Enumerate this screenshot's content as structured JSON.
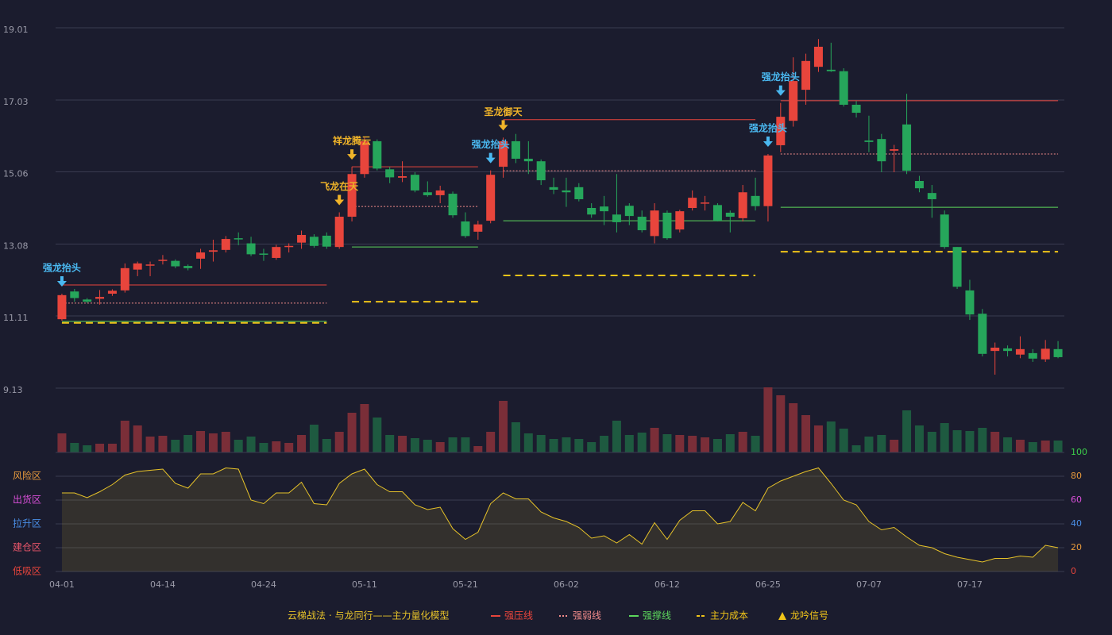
{
  "chart_data": {
    "type": "candlestick",
    "categories": [
      "04-01",
      null,
      null,
      null,
      null,
      null,
      null,
      null,
      "04-14",
      null,
      null,
      null,
      null,
      null,
      null,
      null,
      "04-24",
      null,
      null,
      null,
      null,
      null,
      null,
      null,
      "05-11",
      null,
      null,
      null,
      null,
      null,
      null,
      null,
      "05-21",
      null,
      null,
      null,
      null,
      null,
      null,
      null,
      "06-02",
      null,
      null,
      null,
      null,
      null,
      null,
      null,
      "06-12",
      null,
      null,
      null,
      null,
      null,
      null,
      null,
      "06-25",
      null,
      null,
      null,
      null,
      null,
      null,
      null,
      "07-07",
      null,
      null,
      null,
      null,
      null,
      null,
      null,
      "07-17",
      null,
      null,
      null,
      null,
      null,
      null,
      null
    ],
    "open": [
      11.02,
      11.78,
      11.56,
      11.58,
      11.72,
      11.81,
      12.38,
      12.49,
      12.62,
      12.62,
      12.48,
      12.68,
      12.87,
      12.92,
      13.24,
      13.1,
      12.82,
      12.7,
      13.0,
      13.12,
      13.28,
      13.31,
      13.0,
      13.83,
      15.0,
      15.9,
      15.13,
      14.9,
      14.98,
      14.5,
      14.42,
      14.46,
      13.7,
      13.42,
      13.72,
      15.2,
      15.9,
      15.42,
      15.35,
      14.64,
      14.55,
      14.64,
      14.07,
      14.11,
      13.89,
      14.13,
      13.83,
      13.3,
      13.94,
      13.48,
      14.07,
      14.19,
      14.15,
      13.94,
      13.79,
      14.4,
      14.12,
      15.79,
      16.46,
      17.31,
      17.94,
      17.86,
      17.82,
      16.9,
      15.92,
      15.96,
      15.64,
      16.36,
      14.81,
      14.48,
      13.89,
      13.0,
      11.81,
      11.17,
      10.15,
      10.22,
      10.05,
      10.09,
      9.92,
      10.2
    ],
    "high": [
      11.72,
      11.85,
      11.6,
      11.82,
      11.84,
      12.55,
      12.6,
      12.6,
      12.78,
      12.66,
      12.52,
      12.95,
      13.2,
      13.3,
      13.4,
      13.28,
      12.95,
      13.06,
      13.1,
      13.45,
      13.35,
      13.4,
      13.95,
      15.2,
      16.0,
      15.95,
      15.2,
      15.35,
      15.05,
      14.8,
      14.68,
      14.52,
      13.95,
      13.72,
      15.1,
      16.0,
      16.1,
      15.9,
      15.4,
      14.9,
      14.9,
      14.75,
      14.2,
      14.4,
      15.0,
      14.2,
      14.0,
      14.2,
      14.0,
      14.02,
      14.55,
      14.4,
      14.2,
      14.0,
      14.7,
      14.9,
      15.55,
      16.95,
      18.2,
      18.3,
      18.7,
      18.6,
      17.9,
      17.0,
      16.6,
      16.1,
      15.8,
      17.2,
      14.95,
      14.7,
      14.0,
      13.0,
      12.1,
      11.3,
      10.38,
      10.3,
      10.55,
      10.2,
      10.45,
      10.42
    ],
    "low": [
      10.98,
      11.5,
      11.46,
      11.42,
      11.66,
      11.75,
      12.2,
      12.2,
      12.52,
      12.42,
      12.36,
      12.4,
      12.6,
      12.85,
      13.05,
      12.75,
      12.62,
      12.65,
      12.85,
      12.95,
      12.98,
      12.95,
      12.95,
      13.7,
      14.9,
      15.1,
      14.75,
      14.78,
      14.5,
      14.38,
      14.2,
      13.8,
      13.25,
      13.2,
      13.65,
      14.9,
      15.3,
      15.0,
      14.7,
      14.45,
      14.1,
      14.25,
      13.8,
      13.6,
      13.4,
      13.6,
      13.4,
      13.1,
      13.2,
      13.4,
      14.0,
      14.0,
      13.7,
      13.4,
      13.7,
      14.0,
      13.7,
      15.6,
      16.3,
      16.9,
      17.8,
      17.8,
      16.85,
      16.55,
      15.6,
      15.05,
      15.05,
      15.0,
      14.5,
      13.8,
      12.95,
      11.85,
      11.0,
      10.0,
      9.5,
      10.0,
      9.95,
      9.85,
      9.85,
      9.95
    ],
    "close": [
      11.68,
      11.6,
      11.5,
      11.63,
      11.8,
      12.42,
      12.55,
      12.52,
      12.65,
      12.47,
      12.42,
      12.85,
      12.91,
      13.22,
      13.21,
      12.8,
      12.8,
      13.0,
      13.03,
      13.33,
      13.03,
      13.01,
      13.83,
      15.0,
      15.9,
      15.15,
      14.91,
      14.94,
      14.55,
      14.42,
      14.55,
      13.87,
      13.3,
      13.62,
      14.98,
      15.9,
      15.42,
      15.35,
      14.83,
      14.57,
      14.5,
      14.31,
      13.89,
      13.98,
      13.68,
      13.85,
      13.46,
      14.0,
      13.24,
      13.98,
      14.35,
      14.22,
      13.72,
      13.83,
      14.5,
      14.12,
      15.51,
      16.57,
      17.55,
      18.1,
      18.49,
      17.82,
      16.9,
      16.68,
      15.88,
      15.35,
      15.68,
      15.09,
      14.61,
      14.31,
      13.0,
      11.91,
      11.15,
      10.07,
      10.24,
      10.15,
      10.2,
      9.94,
      10.21,
      9.98
    ],
    "volume": [
      24,
      12,
      9,
      11,
      11,
      40,
      34,
      20,
      21,
      16,
      22,
      27,
      24,
      26,
      16,
      20,
      12,
      14,
      12,
      22,
      35,
      17,
      26,
      50,
      61,
      44,
      22,
      21,
      18,
      16,
      13,
      19,
      19,
      8,
      26,
      65,
      38,
      24,
      22,
      17,
      19,
      17,
      13,
      21,
      40,
      22,
      25,
      31,
      23,
      22,
      21,
      19,
      17,
      23,
      26,
      21,
      82,
      72,
      62,
      47,
      34,
      39,
      30,
      9,
      20,
      22,
      16,
      53,
      34,
      26,
      37,
      28,
      27,
      31,
      26,
      19,
      16,
      13,
      15,
      15
    ],
    "up_color": "#e8453c",
    "down_color": "#26a65b",
    "up_volume_color": "#7a2e38",
    "down_volume_color": "#1e5a40",
    "ylim": [
      9.13,
      19.01
    ],
    "yticks": [
      9.13,
      11.11,
      13.08,
      15.06,
      17.03,
      19.01
    ],
    "grid": true,
    "indicator": {
      "values": [
        66,
        66,
        62,
        67,
        73,
        81,
        84,
        85,
        86,
        74,
        70,
        82,
        82,
        87,
        86,
        60,
        57,
        66,
        66,
        75,
        57,
        56,
        74,
        82,
        86,
        73,
        67,
        67,
        56,
        52,
        54,
        36,
        27,
        33,
        57,
        66,
        61,
        61,
        50,
        45,
        42,
        37,
        28,
        30,
        24,
        31,
        23,
        41,
        27,
        43,
        51,
        51,
        40,
        42,
        58,
        51,
        70,
        76,
        80,
        84,
        87,
        74,
        60,
        56,
        42,
        35,
        37,
        29,
        22,
        20,
        15,
        12,
        10,
        8,
        11,
        11,
        13,
        12,
        22,
        20
      ],
      "color": "#e6c229",
      "ylim": [
        0,
        100
      ],
      "yticks": [
        {
          "value": 0,
          "color": "#e8453c"
        },
        {
          "value": 20,
          "color": "#e89a3c"
        },
        {
          "value": 40,
          "color": "#4a8fe8"
        },
        {
          "value": 60,
          "color": "#d84fd8"
        },
        {
          "value": 80,
          "color": "#e89a3c"
        },
        {
          "value": 100,
          "color": "#3ccf4a"
        }
      ],
      "zones": [
        {
          "label": "低吸区",
          "value": 0,
          "color": "#e8453c"
        },
        {
          "label": "建仓区",
          "value": 20,
          "color": "#e8556a"
        },
        {
          "label": "拉升区",
          "value": 40,
          "color": "#4a8fe8"
        },
        {
          "label": "出货区",
          "value": 60,
          "color": "#d84fd8"
        },
        {
          "label": "风险区",
          "value": 80,
          "color": "#e89a3c"
        }
      ]
    },
    "levels": [
      {
        "start": 0,
        "end": 21,
        "pressure": 11.96,
        "weak": 11.46,
        "support": 10.96,
        "cost": 10.92
      },
      {
        "start": 23,
        "end": 33,
        "pressure": 15.2,
        "weak": 14.11,
        "support": 13.0,
        "cost": 11.5
      },
      {
        "start": 35,
        "end": 55,
        "pressure": 16.49,
        "weak": 15.09,
        "support": 13.72,
        "cost": 12.22
      },
      {
        "start": 57,
        "end": 79,
        "pressure": 17.01,
        "weak": 15.55,
        "support": 14.09,
        "cost": 12.87
      }
    ],
    "signals": [
      {
        "index": 0,
        "label": "强龙抬头",
        "color": "#4ab8f0"
      },
      {
        "index": 22,
        "label": "飞龙在天",
        "color": "#f0b429"
      },
      {
        "index": 23,
        "label": "祥龙腾云",
        "color": "#f0b429"
      },
      {
        "index": 34,
        "label": "强龙抬头",
        "color": "#4ab8f0"
      },
      {
        "index": 35,
        "label": "圣龙御天",
        "color": "#f0b429"
      },
      {
        "index": 56,
        "label": "强龙抬头",
        "color": "#4ab8f0"
      },
      {
        "index": 57,
        "label": "强龙抬头",
        "color": "#4ab8f0"
      }
    ],
    "legend": {
      "title": "云梯战法 · 与龙同行——主力量化模型",
      "title_color": "#e6c229",
      "items": [
        {
          "name": "强压线",
          "color": "#e8453c",
          "style": "solid"
        },
        {
          "name": "强弱线",
          "color": "#f08a8a",
          "style": "dotted"
        },
        {
          "name": "强撑线",
          "color": "#5cd65c",
          "style": "solid"
        },
        {
          "name": "主力成本",
          "color": "#f0c419",
          "style": "dashed"
        },
        {
          "name": "龙吟信号",
          "color": "#f0c419",
          "style": "triangle"
        }
      ]
    }
  }
}
